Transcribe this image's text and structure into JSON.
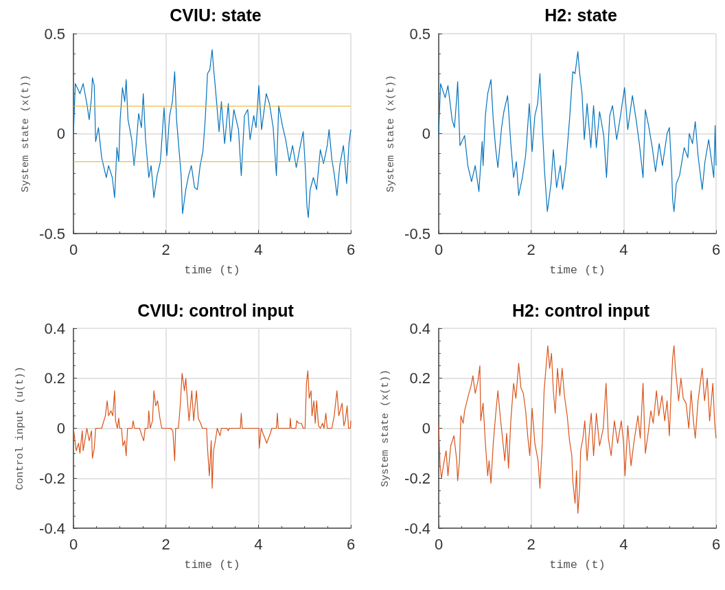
{
  "chart_data": [
    {
      "type": "line",
      "title": "CVIU: state",
      "xlabel": "time (t)",
      "ylabel": "System state (x(t))",
      "xlim": [
        0,
        6
      ],
      "xticks": [
        0,
        2,
        4,
        6
      ],
      "ylim": [
        -0.5,
        0.5
      ],
      "yticks": [
        -0.5,
        0,
        0.5
      ],
      "grid": true,
      "marker": "none",
      "line_style": "solid",
      "ref_lines": [
        {
          "axis": "y",
          "value": 0.14,
          "color": "#edb120"
        },
        {
          "axis": "y",
          "value": -0.14,
          "color": "#edb120"
        }
      ],
      "series": [
        {
          "color": "#0072bd",
          "x": [
            0,
            0.04,
            0.14,
            0.21,
            0.29,
            0.34,
            0.39,
            0.41,
            0.45,
            0.48,
            0.54,
            0.61,
            0.71,
            0.76,
            0.84,
            0.89,
            0.94,
            0.98,
            1.01,
            1.06,
            1.11,
            1.14,
            1.18,
            1.26,
            1.31,
            1.36,
            1.41,
            1.47,
            1.51,
            1.56,
            1.63,
            1.68,
            1.74,
            1.81,
            1.88,
            1.96,
            2.02,
            2.08,
            2.14,
            2.19,
            2.23,
            2.28,
            2.33,
            2.36,
            2.43,
            2.49,
            2.55,
            2.62,
            2.68,
            2.74,
            2.8,
            2.85,
            2.9,
            2.95,
            3.0,
            3.03,
            3.07,
            3.15,
            3.2,
            3.27,
            3.35,
            3.4,
            3.47,
            3.57,
            3.63,
            3.7,
            3.77,
            3.82,
            3.9,
            3.95,
            4.01,
            4.07,
            4.17,
            4.24,
            4.32,
            4.39,
            4.44,
            4.52,
            4.59,
            4.67,
            4.74,
            4.82,
            4.89,
            4.97,
            5.02,
            5.05,
            5.08,
            5.12,
            5.19,
            5.26,
            5.34,
            5.41,
            5.49,
            5.53,
            5.59,
            5.64,
            5.7,
            5.76,
            5.84,
            5.91,
            5.96,
            6.0
          ],
          "values": [
            0,
            0.25,
            0.2,
            0.25,
            0.15,
            0.07,
            0.18,
            0.28,
            0.24,
            -0.04,
            0.03,
            -0.12,
            -0.22,
            -0.16,
            -0.22,
            -0.32,
            -0.07,
            -0.14,
            0.07,
            0.23,
            0.16,
            0.27,
            0.07,
            -0.03,
            -0.16,
            -0.05,
            0.1,
            0.03,
            0.2,
            -0.03,
            -0.22,
            -0.16,
            -0.32,
            -0.21,
            -0.14,
            0.13,
            -0.11,
            0.09,
            0.16,
            0.31,
            0.07,
            -0.07,
            -0.21,
            -0.4,
            -0.28,
            -0.21,
            -0.16,
            -0.27,
            -0.28,
            -0.16,
            -0.09,
            0.07,
            0.3,
            0.32,
            0.42,
            0.33,
            0.23,
            0.01,
            0.16,
            -0.05,
            0.15,
            -0.04,
            0.12,
            0.02,
            -0.21,
            0.09,
            0.12,
            -0.03,
            0.09,
            0.03,
            0.24,
            0.02,
            0.2,
            0.15,
            0.03,
            -0.21,
            0.14,
            0.04,
            -0.03,
            -0.14,
            -0.06,
            -0.17,
            -0.08,
            0.01,
            -0.19,
            -0.36,
            -0.42,
            -0.28,
            -0.22,
            -0.28,
            -0.08,
            -0.15,
            -0.06,
            0.02,
            -0.13,
            -0.2,
            -0.31,
            -0.16,
            -0.06,
            -0.25,
            -0.05,
            0.02
          ]
        }
      ]
    },
    {
      "type": "line",
      "title": "H2: state",
      "xlabel": "time (t)",
      "ylabel": "System state (x(t))",
      "xlim": [
        0,
        6
      ],
      "xticks": [
        0,
        2,
        4,
        6
      ],
      "ylim": [
        -0.5,
        0.5
      ],
      "yticks": [
        -0.5,
        0,
        0.5
      ],
      "grid": true,
      "marker": "none",
      "line_style": "solid",
      "series": [
        {
          "color": "#0072bd",
          "x": [
            0,
            0.04,
            0.14,
            0.2,
            0.29,
            0.34,
            0.39,
            0.41,
            0.46,
            0.56,
            0.63,
            0.71,
            0.79,
            0.87,
            0.94,
            0.96,
            1.01,
            1.06,
            1.13,
            1.18,
            1.23,
            1.28,
            1.36,
            1.41,
            1.49,
            1.56,
            1.62,
            1.68,
            1.73,
            1.81,
            1.88,
            1.96,
            2.02,
            2.08,
            2.14,
            2.19,
            2.24,
            2.29,
            2.35,
            2.43,
            2.48,
            2.55,
            2.63,
            2.68,
            2.75,
            2.83,
            2.9,
            2.95,
            3.01,
            3.05,
            3.1,
            3.15,
            3.21,
            3.29,
            3.35,
            3.41,
            3.48,
            3.57,
            3.63,
            3.7,
            3.76,
            3.85,
            3.92,
            4.02,
            4.09,
            4.19,
            4.27,
            4.34,
            4.42,
            4.47,
            4.54,
            4.62,
            4.69,
            4.77,
            4.84,
            4.94,
            4.99,
            5.04,
            5.06,
            5.09,
            5.14,
            5.21,
            5.31,
            5.39,
            5.42,
            5.49,
            5.55,
            5.61,
            5.7,
            5.76,
            5.84,
            5.95,
            5.98,
            6.0
          ],
          "values": [
            0,
            0.25,
            0.18,
            0.24,
            0.07,
            0.03,
            0.18,
            0.26,
            -0.06,
            -0.01,
            -0.16,
            -0.24,
            -0.16,
            -0.29,
            -0.04,
            -0.16,
            0.09,
            0.2,
            0.27,
            0.07,
            -0.07,
            -0.17,
            0.03,
            0.11,
            0.19,
            -0.05,
            -0.22,
            -0.14,
            -0.31,
            -0.22,
            -0.11,
            0.15,
            -0.09,
            0.09,
            0.15,
            0.3,
            0.04,
            -0.19,
            -0.39,
            -0.25,
            -0.08,
            -0.27,
            -0.16,
            -0.28,
            -0.16,
            0.07,
            0.31,
            0.3,
            0.41,
            0.3,
            0.2,
            -0.03,
            0.15,
            -0.07,
            0.14,
            -0.07,
            0.11,
            -0.01,
            -0.22,
            0.09,
            0.14,
            -0.03,
            0.07,
            0.23,
            0.02,
            0.19,
            0.07,
            -0.05,
            -0.22,
            0.12,
            0.04,
            -0.07,
            -0.19,
            -0.05,
            -0.16,
            0,
            0.03,
            -0.19,
            -0.33,
            -0.39,
            -0.25,
            -0.21,
            -0.07,
            -0.12,
            0,
            -0.05,
            0.06,
            -0.11,
            -0.28,
            -0.14,
            -0.03,
            -0.22,
            0.04,
            -0.16
          ]
        }
      ]
    },
    {
      "type": "line",
      "title": "CVIU: control input",
      "xlabel": "time (t)",
      "ylabel": "Control input (u(t))",
      "xlim": [
        0,
        6
      ],
      "xticks": [
        0,
        2,
        4,
        6
      ],
      "ylim": [
        -0.4,
        0.4
      ],
      "yticks": [
        -0.4,
        -0.2,
        0,
        0.2,
        0.4
      ],
      "grid": true,
      "marker": "none",
      "line_style": "solid",
      "series": [
        {
          "color": "#d95319",
          "x": [
            0,
            0.06,
            0.11,
            0.14,
            0.19,
            0.21,
            0.29,
            0.34,
            0.39,
            0.41,
            0.45,
            0.48,
            0.61,
            0.69,
            0.73,
            0.76,
            0.81,
            0.85,
            0.89,
            0.91,
            0.95,
            0.98,
            1.0,
            1.04,
            1.07,
            1.11,
            1.14,
            1.17,
            1.27,
            1.29,
            1.32,
            1.43,
            1.48,
            1.52,
            1.55,
            1.61,
            1.63,
            1.66,
            1.71,
            1.74,
            1.78,
            1.82,
            1.87,
            1.91,
            2.1,
            2.15,
            2.19,
            2.21,
            2.27,
            2.31,
            2.35,
            2.4,
            2.43,
            2.47,
            2.5,
            2.56,
            2.6,
            2.66,
            2.7,
            2.75,
            2.79,
            2.88,
            2.9,
            2.94,
            2.98,
            3.0,
            3.03,
            3.07,
            3.11,
            3.17,
            3.2,
            3.32,
            3.35,
            3.37,
            3.61,
            3.63,
            3.65,
            4.01,
            4.02,
            4.06,
            4.18,
            4.26,
            4.29,
            4.39,
            4.41,
            4.43,
            4.68,
            4.69,
            4.71,
            4.81,
            4.83,
            4.87,
            4.93,
            4.97,
            5.01,
            5.04,
            5.07,
            5.1,
            5.14,
            5.16,
            5.2,
            5.23,
            5.26,
            5.3,
            5.34,
            5.39,
            5.42,
            5.46,
            5.49,
            5.59,
            5.64,
            5.7,
            5.74,
            5.81,
            5.85,
            5.88,
            5.92,
            5.95,
            5.99,
            6.0
          ],
          "values": [
            0,
            -0.09,
            -0.06,
            -0.1,
            -0.01,
            -0.09,
            0,
            -0.05,
            -0.01,
            -0.12,
            -0.08,
            0,
            0,
            0.05,
            0.11,
            0.05,
            0.07,
            0.05,
            0.15,
            0.03,
            0,
            0.04,
            0,
            0,
            -0.07,
            -0.05,
            -0.11,
            0,
            0,
            0.03,
            0,
            0,
            -0.03,
            -0.05,
            0,
            0,
            0.07,
            0,
            0.03,
            0.15,
            0.09,
            0.11,
            0.04,
            0,
            0,
            -0.01,
            -0.13,
            0,
            0,
            0.09,
            0.22,
            0.15,
            0.2,
            0.1,
            0.03,
            0.15,
            0.03,
            0.15,
            0.04,
            0.02,
            0,
            0,
            -0.08,
            -0.19,
            -0.05,
            -0.24,
            -0.09,
            -0.05,
            0,
            -0.03,
            0,
            0,
            -0.01,
            0,
            0,
            0.06,
            0,
            0,
            -0.08,
            0,
            -0.06,
            -0.02,
            0,
            0,
            0.06,
            0,
            0,
            0.04,
            0,
            0,
            0.03,
            0.02,
            0.02,
            0,
            0,
            0.18,
            0.23,
            0.12,
            0.15,
            0.05,
            0.11,
            0.02,
            0.11,
            0.01,
            0,
            0.02,
            0,
            0.06,
            0,
            0,
            0.05,
            0.15,
            0.05,
            0.1,
            0.01,
            0.03,
            0.09,
            0,
            0,
            0.03
          ]
        }
      ]
    },
    {
      "type": "line",
      "title": "H2: control input",
      "xlabel": "time (t)",
      "ylabel": "System state (x(t))",
      "xlim": [
        0,
        6
      ],
      "xticks": [
        0,
        2,
        4,
        6
      ],
      "ylim": [
        -0.4,
        0.4
      ],
      "yticks": [
        -0.4,
        -0.2,
        0,
        0.2,
        0.4
      ],
      "grid": true,
      "marker": "none",
      "line_style": "solid",
      "series": [
        {
          "color": "#d95319",
          "x": [
            0,
            0.03,
            0.06,
            0.11,
            0.16,
            0.2,
            0.26,
            0.33,
            0.39,
            0.41,
            0.45,
            0.48,
            0.53,
            0.56,
            0.64,
            0.7,
            0.74,
            0.79,
            0.85,
            0.89,
            0.91,
            0.96,
            1.01,
            1.06,
            1.09,
            1.13,
            1.18,
            1.23,
            1.28,
            1.33,
            1.38,
            1.43,
            1.47,
            1.51,
            1.56,
            1.62,
            1.67,
            1.73,
            1.78,
            1.83,
            1.88,
            1.93,
            1.97,
            2.02,
            2.08,
            2.15,
            2.19,
            2.24,
            2.28,
            2.32,
            2.36,
            2.4,
            2.44,
            2.48,
            2.52,
            2.57,
            2.62,
            2.67,
            2.72,
            2.78,
            2.83,
            2.88,
            2.9,
            2.95,
            2.98,
            3.01,
            3.05,
            3.07,
            3.12,
            3.16,
            3.21,
            3.27,
            3.3,
            3.35,
            3.41,
            3.48,
            3.56,
            3.62,
            3.67,
            3.73,
            3.8,
            3.87,
            3.95,
            4.0,
            4.03,
            4.09,
            4.16,
            4.22,
            4.31,
            4.36,
            4.42,
            4.47,
            4.53,
            4.59,
            4.64,
            4.71,
            4.76,
            4.83,
            4.89,
            4.94,
            4.99,
            5.03,
            5.06,
            5.09,
            5.12,
            5.19,
            5.24,
            5.29,
            5.35,
            5.41,
            5.46,
            5.51,
            5.55,
            5.61,
            5.7,
            5.75,
            5.81,
            5.86,
            5.93,
            5.97,
            6.0
          ],
          "values": [
            0.01,
            -0.15,
            -0.2,
            -0.14,
            -0.09,
            -0.19,
            -0.07,
            -0.03,
            -0.13,
            -0.21,
            -0.13,
            0.05,
            0.02,
            0.07,
            0.13,
            0.17,
            0.21,
            0.14,
            0.19,
            0.25,
            0.03,
            0.1,
            -0.06,
            -0.19,
            -0.13,
            -0.22,
            -0.06,
            0.05,
            0.15,
            0.05,
            -0.04,
            -0.13,
            -0.02,
            -0.16,
            0.03,
            0.18,
            0.12,
            0.26,
            0.16,
            0.14,
            0.07,
            -0.04,
            -0.11,
            0.08,
            -0.06,
            -0.13,
            -0.24,
            -0.06,
            0.15,
            0.24,
            0.33,
            0.24,
            0.3,
            0.15,
            0.06,
            0.24,
            0.13,
            0.24,
            0.13,
            0.05,
            -0.05,
            -0.11,
            -0.21,
            -0.3,
            -0.17,
            -0.34,
            -0.24,
            -0.09,
            -0.04,
            0.03,
            -0.13,
            0.01,
            0.06,
            -0.11,
            0.06,
            -0.07,
            0,
            0.18,
            -0.04,
            -0.11,
            0.03,
            -0.06,
            0.03,
            -0.06,
            -0.19,
            0.01,
            -0.15,
            -0.06,
            0.05,
            -0.04,
            0.18,
            -0.1,
            -0.02,
            0.07,
            0.02,
            0.15,
            0.05,
            0.13,
            0.03,
            0.11,
            -0.03,
            0.16,
            0.28,
            0.33,
            0.24,
            0.11,
            0.2,
            0.12,
            0.1,
            0,
            0.15,
            0.03,
            -0.04,
            0.11,
            0.24,
            0.11,
            0.2,
            0.03,
            0.18,
            0.02,
            -0.04
          ]
        }
      ]
    }
  ]
}
